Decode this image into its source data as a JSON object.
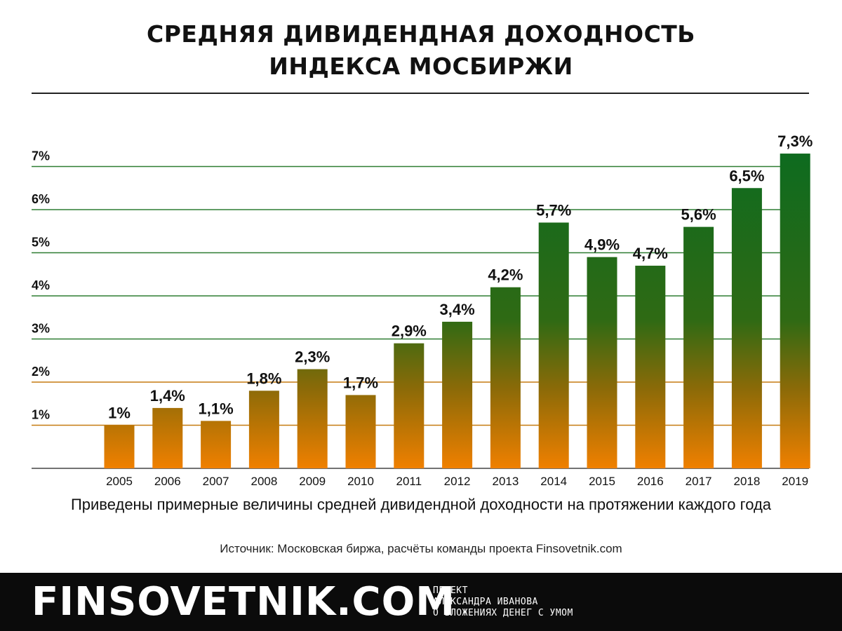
{
  "title": {
    "line1": "СРЕДНЯЯ ДИВИДЕНДНАЯ ДОХОДНОСТЬ",
    "line2": "ИНДЕКСА МОСБИРЖИ"
  },
  "subtitle": "Приведены примерные величины средней дивидендной доходности на протяжении каждого года",
  "source": "Источник: Московская биржа, расчёты команды проекта Finsovetnik.com",
  "footer": {
    "brand": "FINSOVETNIK.COM",
    "tagline1": "ПРОЕКТ",
    "tagline2": "АЛЕКСАНДРА ИВАНОВА",
    "tagline3": "О ВЛОЖЕНИЯХ ДЕНЕГ С УМОМ"
  },
  "colors": {
    "bar_top": "#0f6b1f",
    "bar_bottom": "#f08000",
    "grid_green": "#2e7d32",
    "grid_orange": "#c57a10",
    "footer_bg": "#0b0b0b"
  },
  "chart_data": {
    "type": "bar",
    "categories": [
      "2005",
      "2006",
      "2007",
      "2008",
      "2009",
      "2010",
      "2011",
      "2012",
      "2013",
      "2014",
      "2015",
      "2016",
      "2017",
      "2018",
      "2019"
    ],
    "values": [
      1,
      1.4,
      1.1,
      1.8,
      2.3,
      1.7,
      2.9,
      3.4,
      4.2,
      5.7,
      4.9,
      4.7,
      5.6,
      6.5,
      7.3
    ],
    "value_labels": [
      "1%",
      "1,4%",
      "1,1%",
      "1,8%",
      "2,3%",
      "1,7%",
      "2,9%",
      "3,4%",
      "4,2%",
      "5,7%",
      "4,9%",
      "4,7%",
      "5,6%",
      "6,5%",
      "7,3%"
    ],
    "yticks": [
      1,
      2,
      3,
      4,
      5,
      6,
      7
    ],
    "ytick_labels": [
      "1%",
      "2%",
      "3%",
      "4%",
      "5%",
      "6%",
      "7%"
    ],
    "ylim": [
      0,
      7.3
    ],
    "grid": true
  }
}
